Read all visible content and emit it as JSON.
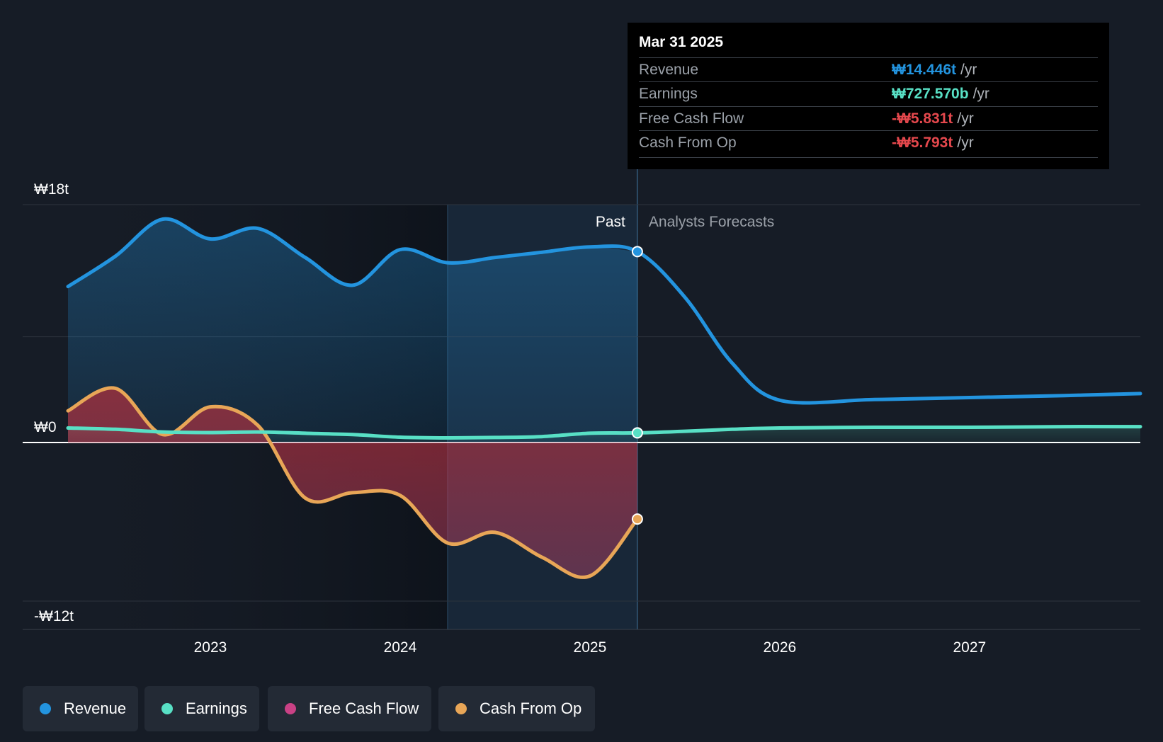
{
  "chart_data": {
    "type": "line",
    "x_domain": [
      2022.25,
      2027.9
    ],
    "ylim": [
      -12,
      18
    ],
    "y_unit": "trillion KRW",
    "y_tick_labels": [
      {
        "value": 18,
        "label": "₩18t"
      },
      {
        "value": 0,
        "label": "₩0"
      },
      {
        "value": -12,
        "label": "-₩12t"
      }
    ],
    "x_ticks": [
      {
        "value": 2023,
        "label": "2023"
      },
      {
        "value": 2024,
        "label": "2024"
      },
      {
        "value": 2025,
        "label": "2025"
      },
      {
        "value": 2026,
        "label": "2026"
      },
      {
        "value": 2027,
        "label": "2027"
      }
    ],
    "past_label": "Past",
    "forecast_label": "Analysts Forecasts",
    "divider_x": 2025.25,
    "highlight_start": 2024.25,
    "series": [
      {
        "name": "Revenue",
        "color": "#2394df",
        "fill": true,
        "points": [
          [
            2022.25,
            11.8
          ],
          [
            2022.5,
            14.1
          ],
          [
            2022.75,
            16.9
          ],
          [
            2023.0,
            15.4
          ],
          [
            2023.25,
            16.2
          ],
          [
            2023.5,
            14.0
          ],
          [
            2023.75,
            11.9
          ],
          [
            2024.0,
            14.6
          ],
          [
            2024.25,
            13.6
          ],
          [
            2024.5,
            14.0
          ],
          [
            2024.75,
            14.4
          ],
          [
            2025.0,
            14.8
          ],
          [
            2025.25,
            14.446
          ],
          [
            2025.5,
            11.0
          ],
          [
            2025.75,
            6.0
          ],
          [
            2026.0,
            3.2
          ],
          [
            2026.5,
            3.25
          ],
          [
            2027.0,
            3.4
          ],
          [
            2027.5,
            3.55
          ],
          [
            2027.9,
            3.7
          ]
        ]
      },
      {
        "name": "Earnings",
        "color": "#58e0c5",
        "fill": true,
        "points": [
          [
            2022.25,
            1.1
          ],
          [
            2022.5,
            1.0
          ],
          [
            2022.75,
            0.8
          ],
          [
            2023.0,
            0.75
          ],
          [
            2023.25,
            0.8
          ],
          [
            2023.5,
            0.7
          ],
          [
            2023.75,
            0.6
          ],
          [
            2024.0,
            0.4
          ],
          [
            2024.25,
            0.35
          ],
          [
            2024.5,
            0.38
          ],
          [
            2024.75,
            0.45
          ],
          [
            2025.0,
            0.7
          ],
          [
            2025.25,
            0.728
          ],
          [
            2025.5,
            0.85
          ],
          [
            2025.75,
            1.0
          ],
          [
            2026.0,
            1.1
          ],
          [
            2026.5,
            1.15
          ],
          [
            2027.0,
            1.15
          ],
          [
            2027.5,
            1.2
          ],
          [
            2027.9,
            1.2
          ]
        ]
      },
      {
        "name": "Free Cash Flow",
        "color": "#c94185",
        "fill": true,
        "points": [
          [
            2022.25,
            2.3
          ],
          [
            2022.5,
            4.0
          ],
          [
            2022.75,
            0.5
          ],
          [
            2023.0,
            2.6
          ],
          [
            2023.25,
            1.2
          ],
          [
            2023.5,
            -4.3
          ],
          [
            2023.75,
            -3.9
          ],
          [
            2024.0,
            -4.1
          ],
          [
            2024.25,
            -7.7
          ],
          [
            2024.5,
            -6.9
          ],
          [
            2024.75,
            -8.8
          ],
          [
            2025.0,
            -10.2
          ],
          [
            2025.25,
            -5.831
          ]
        ]
      },
      {
        "name": "Cash From Op",
        "color": "#e8a657",
        "fill": false,
        "points": [
          [
            2022.25,
            2.4
          ],
          [
            2022.5,
            4.1
          ],
          [
            2022.75,
            0.6
          ],
          [
            2023.0,
            2.7
          ],
          [
            2023.25,
            1.3
          ],
          [
            2023.5,
            -4.2
          ],
          [
            2023.75,
            -3.8
          ],
          [
            2024.0,
            -4.0
          ],
          [
            2024.25,
            -7.6
          ],
          [
            2024.5,
            -6.8
          ],
          [
            2024.75,
            -8.7
          ],
          [
            2025.0,
            -10.1
          ],
          [
            2025.25,
            -5.793
          ]
        ]
      }
    ]
  },
  "tooltip": {
    "date": "Mar 31 2025",
    "rows": [
      {
        "label": "Revenue",
        "value": "₩14.446t",
        "unit": "/yr",
        "color": "#2394df"
      },
      {
        "label": "Earnings",
        "value": "₩727.570b",
        "unit": "/yr",
        "color": "#58e0c5"
      },
      {
        "label": "Free Cash Flow",
        "value": "-₩5.831t",
        "unit": "/yr",
        "color": "#e5484d"
      },
      {
        "label": "Cash From Op",
        "value": "-₩5.793t",
        "unit": "/yr",
        "color": "#e5484d"
      }
    ]
  },
  "legend": [
    {
      "label": "Revenue",
      "color": "#2394df"
    },
    {
      "label": "Earnings",
      "color": "#58e0c5"
    },
    {
      "label": "Free Cash Flow",
      "color": "#c94185"
    },
    {
      "label": "Cash From Op",
      "color": "#e8a657"
    }
  ]
}
